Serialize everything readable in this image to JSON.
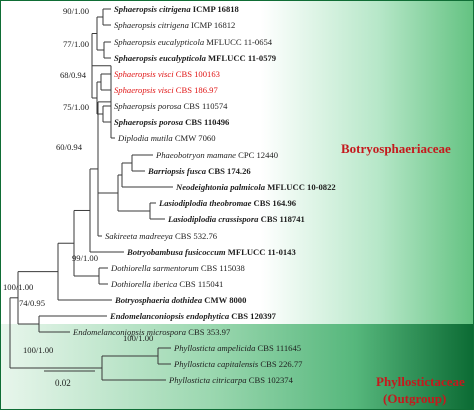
{
  "figure": {
    "colors": {
      "branch": "#3a3a3a",
      "highlight_text": "#e01616",
      "family_label": "#c5191d",
      "botryo_gradient": [
        "#ffffff",
        "#b6e7c8",
        "#63c281"
      ],
      "phyllo_gradient": [
        "#e8f6ec",
        "#56b77c",
        "#0b6a33"
      ],
      "frame": "#0f6d35"
    },
    "families": [
      {
        "name": "Botryosphaeriaceae"
      },
      {
        "name": "Phyllostictaceae",
        "subtitle": "(Outgroup)"
      }
    ],
    "scale_bar": {
      "label": "0.02"
    }
  },
  "tree": {
    "taxa": [
      {
        "genus": "Sphaeropsis citrigena",
        "strain": "ICMP 16818",
        "bold": true
      },
      {
        "genus": "Sphaeropsis citrigena",
        "strain": "ICMP 16812",
        "bold": false
      },
      {
        "genus": "Sphaeropsis eucalypticola",
        "strain": "MFLUCC 11-0654",
        "bold": false
      },
      {
        "genus": "Sphaeropsis eucalypticola",
        "strain": "MFLUCC 11-0579",
        "bold": true
      },
      {
        "genus": "Sphaeropsis visci",
        "strain": "CBS 100163",
        "bold": false,
        "highlight": true
      },
      {
        "genus": "Sphaeropsis visci",
        "strain": "CBS 186.97",
        "bold": false,
        "highlight": true
      },
      {
        "genus": "Sphaeropsis porosa",
        "strain": "CBS 110574",
        "bold": false
      },
      {
        "genus": "Sphaeropsis porosa",
        "strain": "CBS 110496",
        "bold": true
      },
      {
        "genus": "Diplodia mutila",
        "strain": "CMW 7060",
        "bold": false
      },
      {
        "genus": "Phaeobotryon mamane",
        "strain": "CPC 12440",
        "bold": false
      },
      {
        "genus": "Barriopsis fusca",
        "strain": "CBS 174.26",
        "bold": true
      },
      {
        "genus": "Neodeightonia palmicola",
        "strain": "MFLUCC 10-0822",
        "bold": true
      },
      {
        "genus": "Lasiodiplodia theobromae",
        "strain": "CBS 164.96",
        "bold": true
      },
      {
        "genus": "Lasiodiplodia crassispora",
        "strain": "CBS 118741",
        "bold": true
      },
      {
        "genus": "Sakireeta madreeya",
        "strain": "CBS 532.76",
        "bold": false
      },
      {
        "genus": "Botryobambusa fusicoccum",
        "strain": "MFLUCC 11-0143",
        "bold": true
      },
      {
        "genus": "Dothiorella sarmentorum",
        "strain": "CBS 115038",
        "bold": false
      },
      {
        "genus": "Dothiorella iberica",
        "strain": "CBS 115041",
        "bold": false
      },
      {
        "genus": "Botryosphaeria dothidea",
        "strain": "CMW 8000",
        "bold": true
      },
      {
        "genus": "Endomelanconiopsis endophytica",
        "strain": "CBS 120397",
        "bold": true
      },
      {
        "genus": "Endomelanconiopsis microspora",
        "strain": "CBS 353.97",
        "bold": false
      },
      {
        "genus": "Phyllosticta ampelicida",
        "strain": "CBS 111645",
        "bold": false
      },
      {
        "genus": "Phyllosticta capitalensis",
        "strain": "CBS 226.77",
        "bold": false
      },
      {
        "genus": "Phyllosticta citricarpa",
        "strain": "CBS 102374",
        "bold": false
      }
    ],
    "supports": [
      {
        "label": "90/1.00"
      },
      {
        "label": "77/1.00"
      },
      {
        "label": "68/0.94"
      },
      {
        "label": "75/1.00"
      },
      {
        "label": "60/0.94"
      },
      {
        "label": "99/1.00"
      },
      {
        "label": "100/1.00"
      },
      {
        "label": "74/0.95"
      },
      {
        "label": "100/1.00"
      },
      {
        "label": "100/1.00"
      }
    ]
  }
}
